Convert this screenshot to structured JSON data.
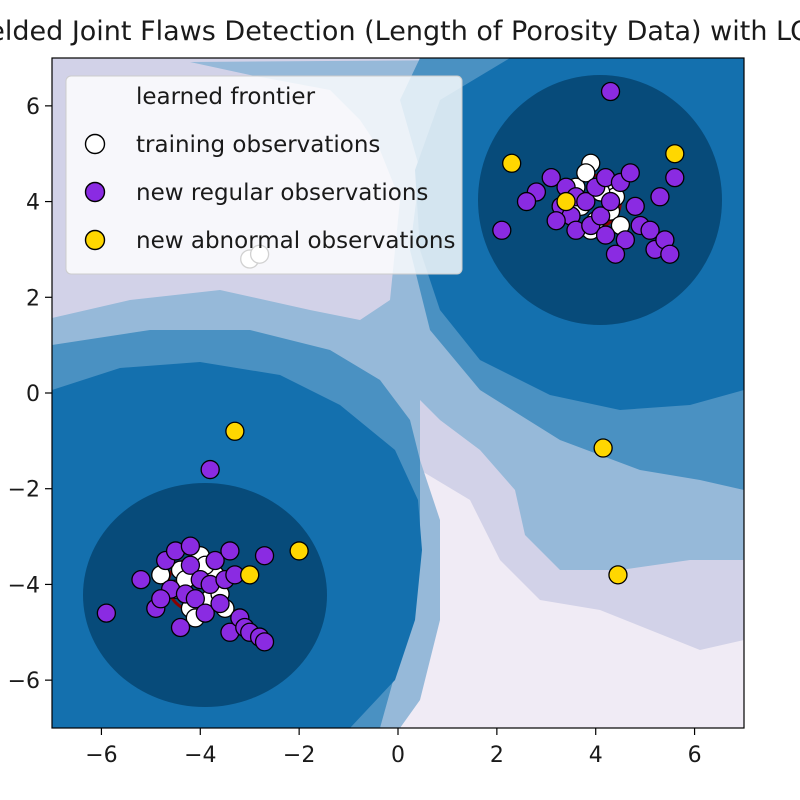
{
  "chart_data": {
    "type": "scatter",
    "title": "Welded Joint Flaws Detection (Length of Porosity Data) with LOF",
    "xlabel": "",
    "ylabel": "",
    "xlim": [
      -7,
      7
    ],
    "ylim": [
      -7,
      7
    ],
    "x_ticks": [
      -6,
      -4,
      -2,
      0,
      2,
      4,
      6
    ],
    "y_ticks": [
      -6,
      -4,
      -2,
      0,
      2,
      4,
      6
    ],
    "x_tick_labels": [
      "−6",
      "−4",
      "−2",
      "0",
      "2",
      "4",
      "6"
    ],
    "y_tick_labels": [
      "−6",
      "−4",
      "−2",
      "0",
      "2",
      "4",
      "6"
    ],
    "grid": false,
    "legend": {
      "placement": "upper-left",
      "entries": [
        {
          "label": "learned frontier",
          "kind": "line",
          "color": "#8b0000"
        },
        {
          "label": "training observations",
          "kind": "marker",
          "color": "#ffffff"
        },
        {
          "label": "new regular observations",
          "kind": "marker",
          "color": "#8a2be2"
        },
        {
          "label": "new abnormal observations",
          "kind": "marker",
          "color": "#ffd700"
        }
      ]
    },
    "contour_colors": [
      "#f0ebf5",
      "#d2d2e8",
      "#96b9d9",
      "#4a91c2",
      "#1470ae",
      "#074b7a"
    ],
    "frontier": {
      "color": "#8b0000",
      "ellipses": [
        {
          "cx": -4.1,
          "cy": -4.0,
          "rx": 0.55,
          "ry": 0.55
        },
        {
          "cx": 3.95,
          "cy": 4.0,
          "rx": 0.55,
          "ry": 0.55
        }
      ]
    },
    "series": [
      {
        "name": "training observations",
        "color": "#ffffff",
        "points": [
          [
            -4.0,
            -3.4
          ],
          [
            -4.4,
            -3.7
          ],
          [
            -3.8,
            -4.3
          ],
          [
            -4.2,
            -4.5
          ],
          [
            -3.7,
            -3.8
          ],
          [
            -4.5,
            -4.1
          ],
          [
            -3.9,
            -3.6
          ],
          [
            -4.1,
            -4.7
          ],
          [
            -4.3,
            -3.9
          ],
          [
            -3.6,
            -4.2
          ],
          [
            -4.8,
            -3.8
          ],
          [
            -3.5,
            -4.5
          ],
          [
            3.9,
            4.8
          ],
          [
            4.2,
            4.4
          ],
          [
            3.7,
            3.9
          ],
          [
            4.3,
            3.8
          ],
          [
            3.6,
            4.3
          ],
          [
            4.0,
            3.6
          ],
          [
            4.4,
            4.1
          ],
          [
            3.8,
            4.6
          ],
          [
            4.1,
            4.2
          ],
          [
            3.5,
            3.7
          ],
          [
            4.5,
            3.5
          ],
          [
            3.9,
            3.4
          ],
          [
            -3.0,
            2.8
          ],
          [
            -2.8,
            2.9
          ]
        ]
      },
      {
        "name": "new regular observations",
        "color": "#8a2be2",
        "points": [
          [
            -5.9,
            -4.6
          ],
          [
            -5.2,
            -3.9
          ],
          [
            -4.9,
            -4.5
          ],
          [
            -4.7,
            -3.5
          ],
          [
            -4.6,
            -4.1
          ],
          [
            -4.3,
            -4.2
          ],
          [
            -4.2,
            -3.6
          ],
          [
            -4.1,
            -4.3
          ],
          [
            -4.0,
            -3.9
          ],
          [
            -3.9,
            -4.6
          ],
          [
            -3.8,
            -4.0
          ],
          [
            -3.7,
            -3.5
          ],
          [
            -3.6,
            -4.4
          ],
          [
            -3.5,
            -3.9
          ],
          [
            -3.4,
            -5.0
          ],
          [
            -3.3,
            -3.8
          ],
          [
            -3.2,
            -4.7
          ],
          [
            -3.1,
            -4.9
          ],
          [
            -3.0,
            -5.0
          ],
          [
            -2.8,
            -5.1
          ],
          [
            -2.7,
            -5.2
          ],
          [
            -2.7,
            -3.4
          ],
          [
            -3.8,
            -1.6
          ],
          [
            -4.5,
            -3.3
          ],
          [
            -4.4,
            -4.9
          ],
          [
            -4.8,
            -4.3
          ],
          [
            -3.4,
            -3.3
          ],
          [
            -4.2,
            -3.2
          ],
          [
            2.1,
            3.4
          ],
          [
            2.8,
            4.2
          ],
          [
            3.1,
            4.5
          ],
          [
            3.3,
            3.9
          ],
          [
            3.4,
            4.3
          ],
          [
            3.5,
            3.7
          ],
          [
            3.6,
            4.1
          ],
          [
            3.6,
            3.4
          ],
          [
            3.8,
            4.0
          ],
          [
            3.9,
            3.5
          ],
          [
            4.0,
            4.3
          ],
          [
            4.1,
            3.7
          ],
          [
            4.2,
            4.5
          ],
          [
            4.2,
            3.3
          ],
          [
            4.3,
            4.0
          ],
          [
            4.5,
            4.4
          ],
          [
            4.6,
            3.2
          ],
          [
            4.7,
            4.6
          ],
          [
            4.8,
            3.9
          ],
          [
            4.9,
            3.5
          ],
          [
            5.1,
            3.4
          ],
          [
            5.2,
            3.0
          ],
          [
            5.3,
            4.1
          ],
          [
            5.4,
            3.2
          ],
          [
            5.5,
            2.9
          ],
          [
            5.6,
            4.5
          ],
          [
            4.4,
            2.9
          ],
          [
            3.2,
            3.6
          ],
          [
            4.3,
            6.3
          ],
          [
            2.6,
            4.0
          ]
        ]
      },
      {
        "name": "new abnormal observations",
        "color": "#ffd700",
        "points": [
          [
            -3.3,
            -0.8
          ],
          [
            -2.0,
            -3.3
          ],
          [
            -3.0,
            -3.8
          ],
          [
            2.3,
            4.8
          ],
          [
            3.4,
            4.0
          ],
          [
            5.6,
            5.0
          ],
          [
            4.15,
            -1.15
          ],
          [
            4.45,
            -3.8
          ]
        ]
      }
    ]
  }
}
